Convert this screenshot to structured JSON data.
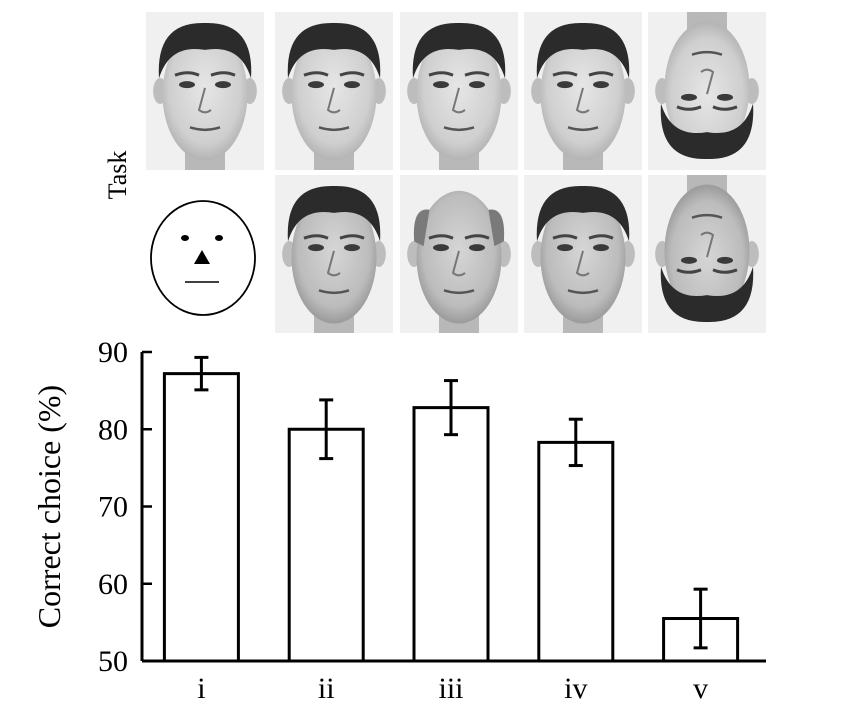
{
  "panel_label": "Task",
  "task_columns": [
    "i",
    "ii",
    "iii",
    "iv",
    "v"
  ],
  "task_images": {
    "top_row": [
      {
        "column": "i",
        "orientation": "upright",
        "tone": "light",
        "hair": "short-dark"
      },
      {
        "column": "ii",
        "orientation": "upright",
        "tone": "light",
        "hair": "short-dark"
      },
      {
        "column": "iii",
        "orientation": "upright",
        "tone": "light",
        "hair": "short-dark"
      },
      {
        "column": "iv",
        "orientation": "upright",
        "tone": "light",
        "hair": "short-dark"
      },
      {
        "column": "v",
        "orientation": "inverted",
        "tone": "light",
        "hair": "short-dark"
      }
    ],
    "bottom_row": [
      {
        "column": "i",
        "type": "schematic-face"
      },
      {
        "column": "ii",
        "orientation": "upright",
        "tone": "medium",
        "hair": "short-dark"
      },
      {
        "column": "iii",
        "orientation": "upright",
        "tone": "medium",
        "hair": "bald-gray"
      },
      {
        "column": "iv",
        "orientation": "upright",
        "tone": "medium",
        "hair": "short-dark"
      },
      {
        "column": "v",
        "orientation": "inverted",
        "tone": "medium",
        "hair": "short-dark"
      }
    ]
  },
  "chart_data": {
    "type": "bar",
    "categories": [
      "i",
      "ii",
      "iii",
      "iv",
      "v"
    ],
    "values": [
      87.2,
      80.0,
      82.8,
      78.3,
      55.5
    ],
    "error": [
      2.1,
      3.8,
      3.5,
      3.0,
      3.8
    ],
    "ylabel": "Correct choice (%)",
    "xlabel": "",
    "ylim": [
      50,
      90
    ],
    "yticks": [
      50,
      60,
      70,
      80,
      90
    ],
    "grid": false,
    "bar_fill": "#ffffff",
    "bar_stroke": "#000000"
  }
}
